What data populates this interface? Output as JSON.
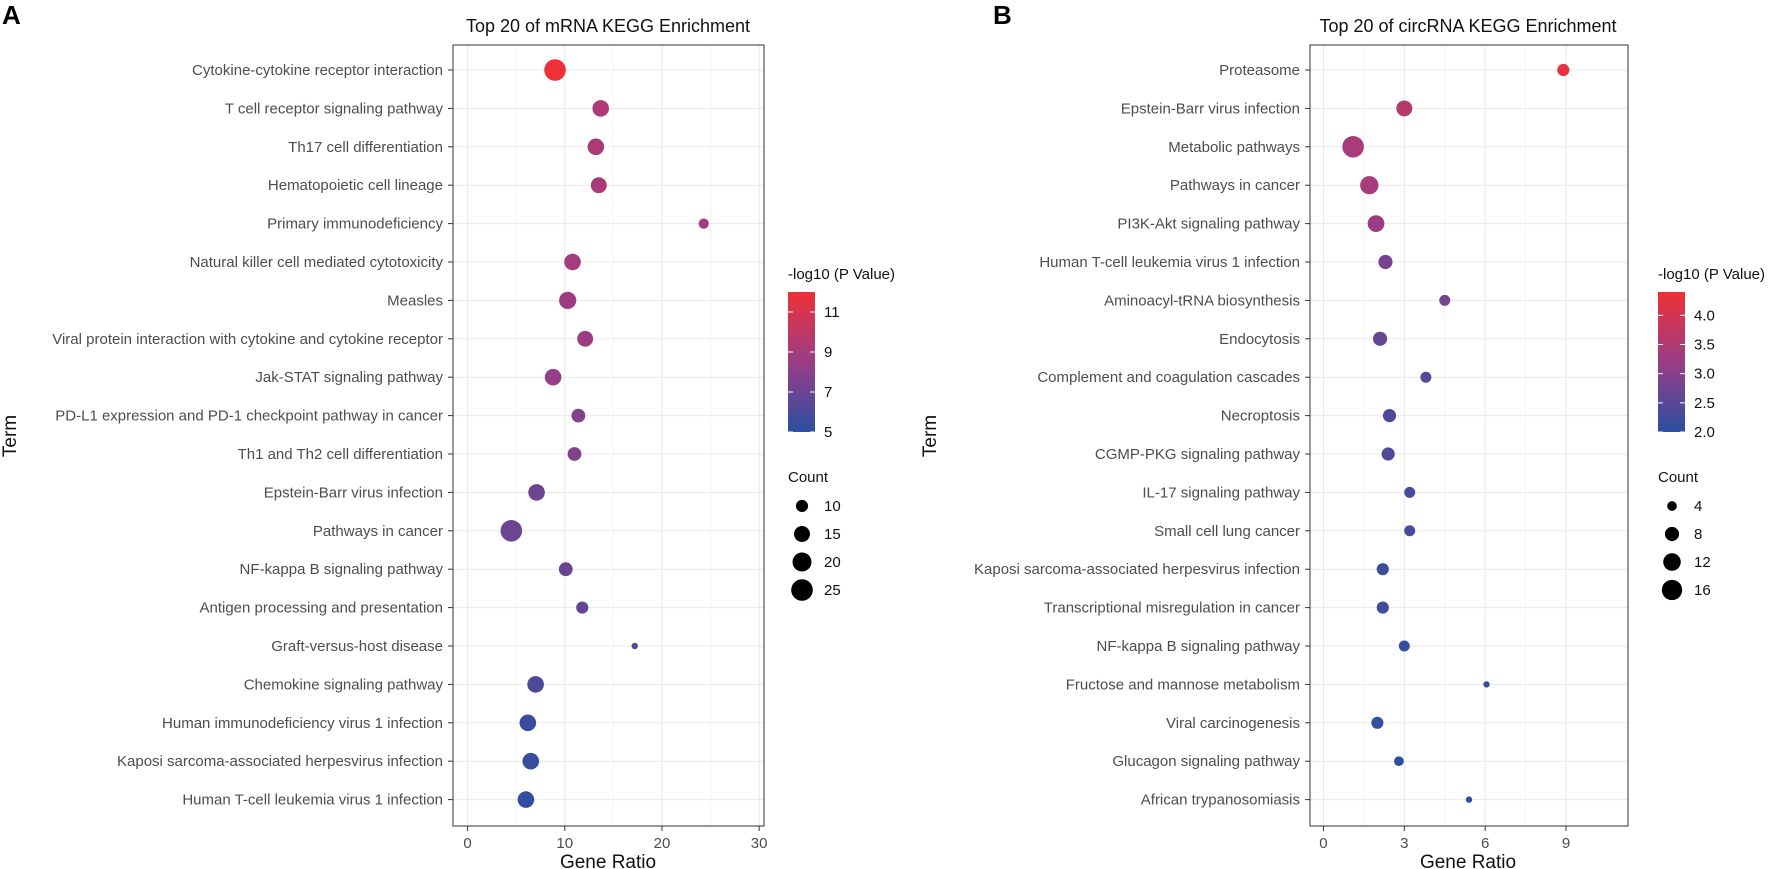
{
  "chart_data": [
    {
      "panel": "A",
      "type": "scatter",
      "title": "Top 20 of mRNA KEGG Enrichment",
      "xlabel": "Gene Ratio",
      "ylabel": "Term",
      "xlim": [
        -1.5,
        30.5
      ],
      "xticks": [
        0,
        10,
        20,
        30
      ],
      "terms": [
        "Cytokine-cytokine receptor interaction",
        "T cell receptor signaling pathway",
        "Th17 cell differentiation",
        "Hematopoietic cell lineage",
        "Primary immunodeficiency",
        "Natural killer cell mediated cytotoxicity",
        "Measles",
        "Viral protein interaction with cytokine and cytokine receptor",
        "Jak-STAT signaling pathway",
        "PD-L1 expression and PD-1 checkpoint pathway in cancer",
        "Th1 and Th2 cell differentiation",
        "Epstein-Barr virus infection",
        "Pathways in cancer",
        "NF-kappa B signaling pathway",
        "Antigen processing and presentation",
        "Graft-versus-host disease",
        "Chemokine signaling pathway",
        "Human immunodeficiency virus 1 infection",
        "Kaposi sarcoma-associated herpesvirus infection",
        "Human T-cell leukemia virus 1 infection"
      ],
      "gene_ratio": [
        9.0,
        13.7,
        13.2,
        13.5,
        24.3,
        10.8,
        10.3,
        12.1,
        8.8,
        11.4,
        11.0,
        7.1,
        4.5,
        10.1,
        11.8,
        17.2,
        7.0,
        6.2,
        6.5,
        6.0
      ],
      "count": [
        25,
        16,
        16,
        15,
        8,
        16,
        17,
        15,
        16,
        12,
        12,
        16,
        25,
        12,
        10,
        5,
        16,
        16,
        16,
        16
      ],
      "neglog10p": [
        12.0,
        9.3,
        9.2,
        9.2,
        9.0,
        8.9,
        8.7,
        8.6,
        8.4,
        7.8,
        7.7,
        7.1,
        7.0,
        6.9,
        6.7,
        6.3,
        6.1,
        5.5,
        5.4,
        5.3
      ],
      "color_legend": {
        "title": "-log10 (P Value)",
        "min": 5,
        "max": 12,
        "ticks": [
          5,
          7,
          9,
          11
        ],
        "low_color": "#2b4fa2",
        "high_color": "#ee3137"
      },
      "size_legend": {
        "title": "Count",
        "values": [
          10,
          15,
          20,
          25
        ],
        "min": 5,
        "max": 25
      }
    },
    {
      "panel": "B",
      "type": "scatter",
      "title": "Top 20 of circRNA KEGG Enrichment",
      "xlabel": "Gene Ratio",
      "ylabel": "Term",
      "xlim": [
        -0.5,
        11.3
      ],
      "xticks": [
        0,
        3,
        6,
        9
      ],
      "terms": [
        "Proteasome",
        "Epstein-Barr virus infection",
        "Metabolic pathways",
        "Pathways in cancer",
        "PI3K-Akt signaling pathway",
        "Human T-cell leukemia virus 1 infection",
        "Aminoacyl-tRNA biosynthesis",
        "Endocytosis",
        "Complement and coagulation cascades",
        "Necroptosis",
        "CGMP-PKG signaling pathway",
        "IL-17 signaling pathway",
        "Small cell lung cancer",
        "Kaposi sarcoma-associated herpesvirus infection",
        "Transcriptional misregulation in cancer",
        "NF-kappa B signaling pathway",
        "Fructose and mannose metabolism",
        "Viral carcinogenesis",
        "Glucagon signaling pathway",
        "African trypanosomiasis"
      ],
      "gene_ratio": [
        8.9,
        3.0,
        1.1,
        1.7,
        1.95,
        2.3,
        4.5,
        2.1,
        3.8,
        2.45,
        2.4,
        3.2,
        3.2,
        2.2,
        2.2,
        3.0,
        6.05,
        2.0,
        2.8,
        5.4
      ],
      "count": [
        6,
        10,
        18,
        13,
        11,
        8,
        5,
        8,
        5,
        7,
        7,
        5,
        5,
        6,
        6,
        5,
        2,
        6,
        4,
        2
      ],
      "neglog10p": [
        4.3,
        3.6,
        3.4,
        3.4,
        3.2,
        2.8,
        2.8,
        2.6,
        2.4,
        2.4,
        2.4,
        2.3,
        2.3,
        2.2,
        2.2,
        2.1,
        2.1,
        2.1,
        2.0,
        2.0
      ],
      "color_legend": {
        "title": "-log10 (P Value)",
        "min": 2.0,
        "max": 4.4,
        "ticks": [
          "2.0",
          "2.5",
          "3.0",
          "3.5",
          "4.0"
        ],
        "low_color": "#2b4fa2",
        "high_color": "#ee3137"
      },
      "size_legend": {
        "title": "Count",
        "values": [
          4,
          8,
          12,
          16
        ],
        "min": 2,
        "max": 18
      }
    }
  ]
}
